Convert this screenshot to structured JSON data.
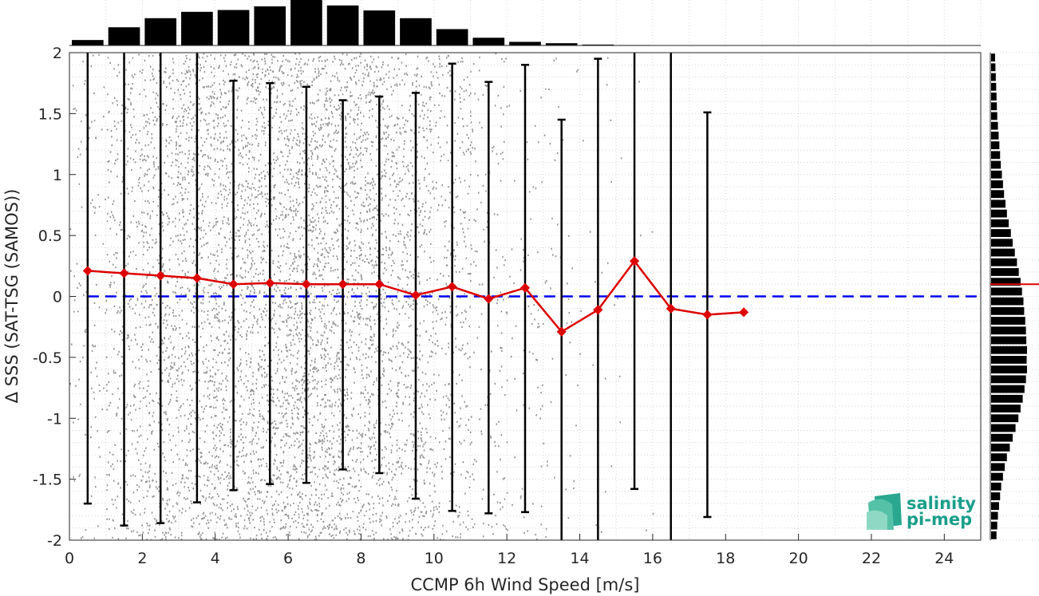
{
  "chart_data": {
    "type": "scatter",
    "xlabel": "CCMP 6h Wind Speed [m/s]",
    "ylabel": "Δ SSS (SAT-TSG (SAMOS))",
    "xlim": [
      0,
      25
    ],
    "ylim": [
      -2,
      2
    ],
    "xticks": [
      "0",
      "2",
      "4",
      "6",
      "8",
      "10",
      "12",
      "14",
      "16",
      "18",
      "20",
      "22",
      "24"
    ],
    "yticks": [
      "-2",
      "-1.5",
      "-1",
      "-0.5",
      "0",
      "0.5",
      "1",
      "1.5",
      "2"
    ],
    "grid": true,
    "zero_line": {
      "y": 0,
      "color": "#0000ee",
      "style": "dashed"
    },
    "bin_centers": [
      0.5,
      1.5,
      2.5,
      3.5,
      4.5,
      5.5,
      6.5,
      7.5,
      8.5,
      9.5,
      10.5,
      11.5,
      12.5,
      13.5,
      14.5,
      15.5,
      16.5,
      17.5,
      18.5
    ],
    "series": [
      {
        "name": "",
        "color": "#dd0000",
        "values": [
          0.21,
          0.19,
          0.17,
          0.15,
          0.1,
          0.11,
          0.1,
          0.1,
          0.1,
          0.01,
          0.08,
          -0.02,
          0.07,
          -0.29,
          -0.11,
          0.29,
          -0.1,
          -0.15,
          -0.13
        ]
      }
    ],
    "error_bars": {
      "color": "#000000",
      "lower": [
        -1.7,
        -1.88,
        -1.86,
        -1.69,
        -1.59,
        -1.54,
        -1.53,
        -1.42,
        -1.45,
        -1.66,
        -1.76,
        -1.78,
        -1.77,
        -2.0,
        -2.0,
        -1.58,
        -2.0,
        -1.81,
        null
      ],
      "upper": [
        2.0,
        2.0,
        2.0,
        2.0,
        1.77,
        1.75,
        1.72,
        1.61,
        1.64,
        1.67,
        1.91,
        1.76,
        1.9,
        1.45,
        1.95,
        2.0,
        2.0,
        1.51,
        null
      ]
    },
    "scatter_cloud": {
      "color": "#808080"
    },
    "top_histogram": {
      "color": "#000000",
      "values": [
        0.12,
        0.4,
        0.6,
        0.74,
        0.78,
        0.86,
        1.0,
        0.88,
        0.77,
        0.6,
        0.36,
        0.17,
        0.08,
        0.05,
        0.02,
        0.01
      ]
    },
    "right_histogram": {
      "color": "#000000",
      "mean_line": {
        "y": 0.1,
        "color": "#dd0000"
      },
      "values": [
        0.15,
        0.17,
        0.19,
        0.22,
        0.25,
        0.28,
        0.33,
        0.38,
        0.44,
        0.52,
        0.6,
        0.68,
        0.76,
        0.82,
        0.88,
        0.93,
        0.97,
        1.0,
        0.99,
        1.0,
        0.98,
        0.97,
        0.95,
        0.92,
        0.9,
        0.86,
        0.82,
        0.77,
        0.72,
        0.66,
        0.6,
        0.55,
        0.49,
        0.44,
        0.4,
        0.36,
        0.33,
        0.3,
        0.27,
        0.25,
        0.23,
        0.21,
        0.19,
        0.17,
        0.16,
        0.15,
        0.14,
        0.13,
        0.12,
        0.11
      ]
    }
  },
  "logo": {
    "line1": "salinity",
    "line2": "pi-mep"
  }
}
